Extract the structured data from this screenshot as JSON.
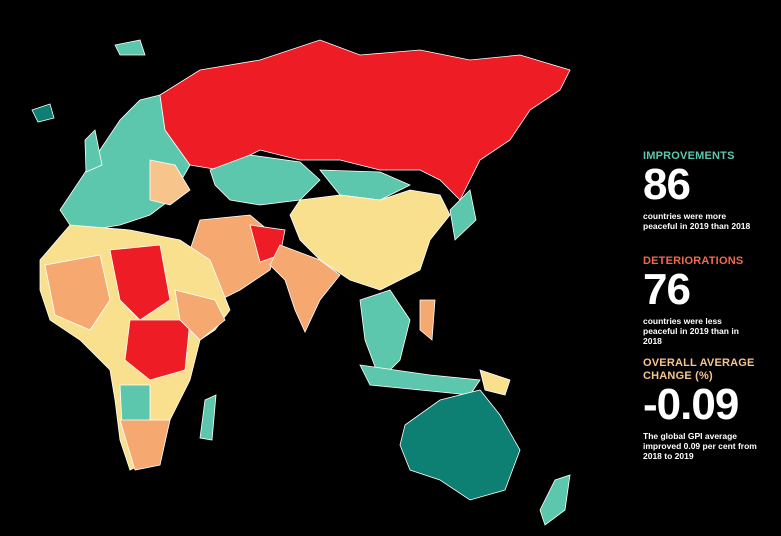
{
  "stats": [
    {
      "label": "IMPROVEMENTS",
      "value": "86",
      "description": "countries were more peaceful in 2019 than 2018",
      "color": "#5cc7ad"
    },
    {
      "label": "DETERIORATIONS",
      "value": "76",
      "description": "countries were less peaceful in 2019 than in 2018",
      "color": "#f06a4a"
    },
    {
      "label": "OVERALL AVERAGE CHANGE (%)",
      "value": "-0.09",
      "description": "The global GPI average improved 0.09 per cent from 2018 to 2019",
      "color": "#f7c48c"
    }
  ]
}
